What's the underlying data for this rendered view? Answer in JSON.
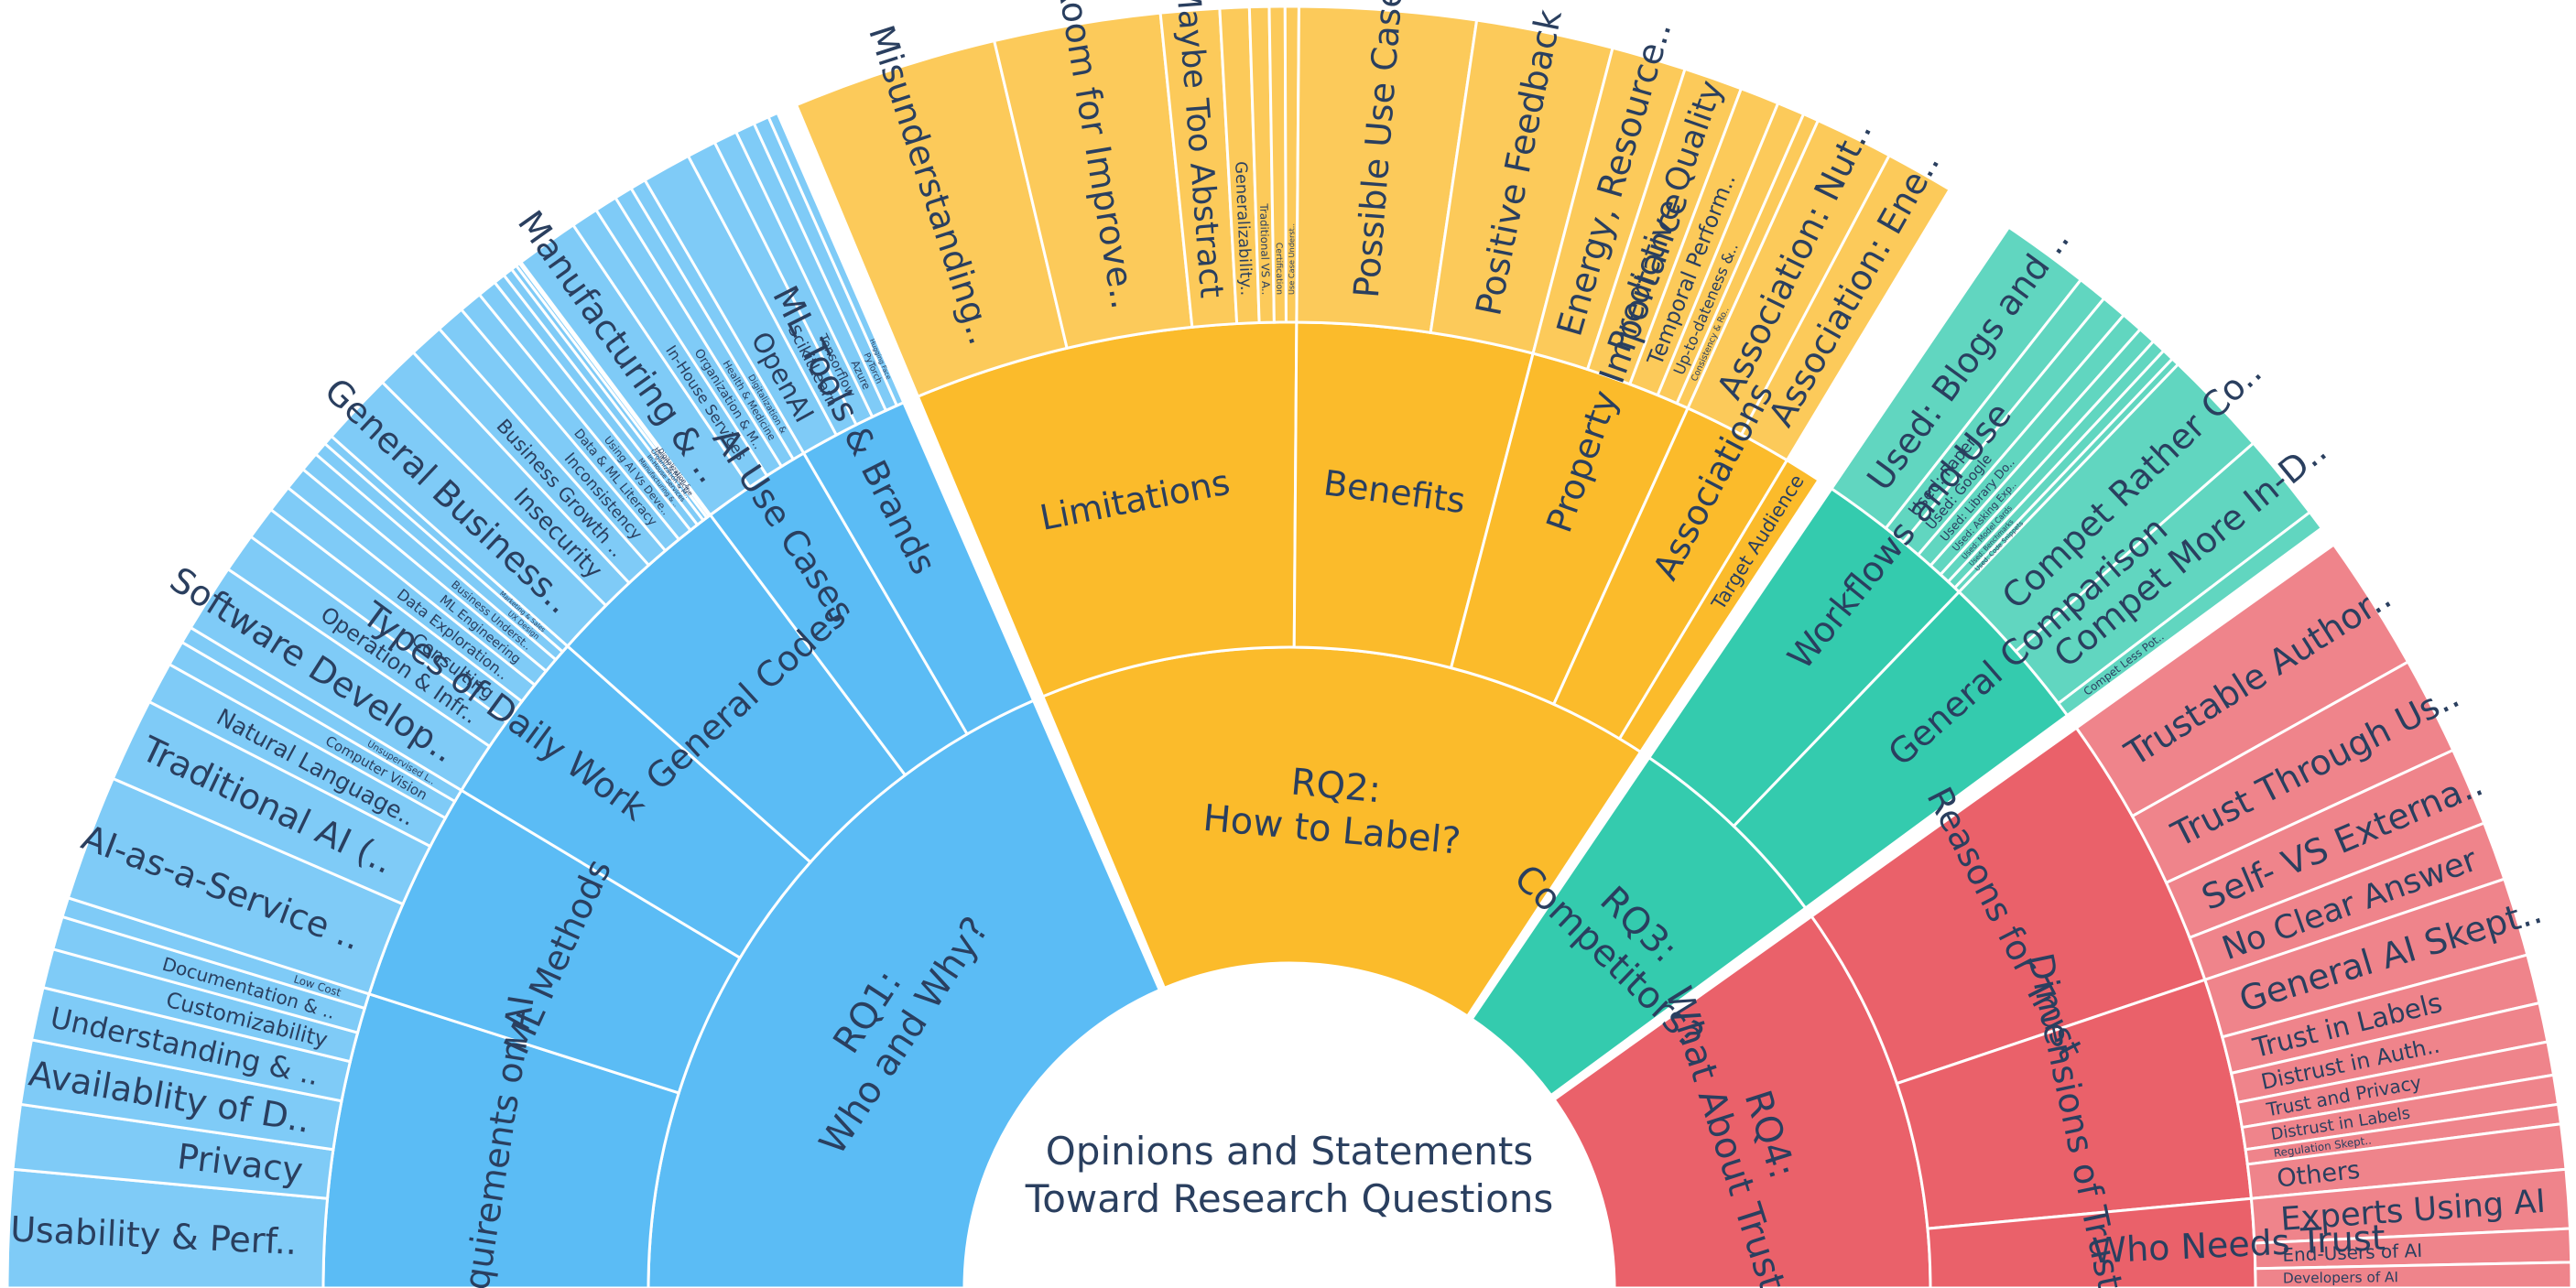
{
  "chart_data": {
    "type": "sunburst",
    "title": "Opinions and Statements Toward Research Questions",
    "title_lines": [
      "Opinions and Statements",
      "Toward Research Questions"
    ],
    "colors": {
      "rq1": "#5bbcf5",
      "rq2": "#fbbb2b",
      "rq3": "#34cbae",
      "rq4": "#ea616a",
      "background": "#ffffff",
      "text": "#2a3f5f"
    },
    "nodes": [
      {
        "label": "RQ1:\nWho and Why?",
        "color": "rq1",
        "value": 7.5,
        "children": [
          {
            "label": "Requirements on AI",
            "value": 2.0,
            "children": [
              {
                "label": "Usability & Perf..",
                "value": 0.6
              },
              {
                "label": "Privacy",
                "value": 0.33
              },
              {
                "label": "Availablity of D..",
                "value": 0.33
              },
              {
                "label": "Understanding & ..",
                "value": 0.27
              },
              {
                "label": "Customizability",
                "value": 0.2
              },
              {
                "label": "Documentation & ..",
                "value": 0.17
              },
              {
                "label": "Low Cost",
                "value": 0.1
              }
            ]
          },
          {
            "label": "ML Methods",
            "value": 1.5,
            "children": [
              {
                "label": "AI-as-a-Service ..",
                "value": 0.6
              },
              {
                "label": "Traditional AI (..",
                "value": 0.4
              },
              {
                "label": "Natural Language..",
                "value": 0.2
              },
              {
                "label": "Computer Vision",
                "value": 0.12
              },
              {
                "label": "Unsupervised L..",
                "value": 0.08
              }
            ]
          },
          {
            "label": "Types of Daily Work",
            "value": 1.2,
            "children": [
              {
                "label": "Software Develop..",
                "value": 0.35
              },
              {
                "label": "Operation & Infr..",
                "value": 0.2
              },
              {
                "label": "Consulting",
                "value": 0.17
              },
              {
                "label": "Data Exploration..",
                "value": 0.14
              },
              {
                "label": "ML Engineering",
                "value": 0.12
              },
              {
                "label": "Business Underst..",
                "value": 0.1
              },
              {
                "label": "UX Design",
                "value": 0.07
              },
              {
                "label": "Marketing & Sales",
                "value": 0.05
              }
            ]
          },
          {
            "label": "General Codes",
            "value": 1.3,
            "children": [
              {
                "label": "General Business..",
                "value": 0.38
              },
              {
                "label": "Insecurity",
                "value": 0.22
              },
              {
                "label": "Business Growth ..",
                "value": 0.18
              },
              {
                "label": "Inconsistency",
                "value": 0.15
              },
              {
                "label": "Data & ML Literacy",
                "value": 0.12
              },
              {
                "label": "Using AI Vs Deve..",
                "value": 0.1
              },
              {
                "label": "Manufacturing & ..",
                "value": 0.06
              },
              {
                "label": "In-House Services",
                "value": 0.05
              },
              {
                "label": "Organization & M..",
                "value": 0.03
              },
              {
                "label": "Health & Medicine",
                "value": 0.02
              },
              {
                "label": "Digitalization & ..",
                "value": 0.01
              }
            ]
          },
          {
            "label": "AI Use Cases",
            "value": 0.75,
            "children": [
              {
                "label": "Manufacturing & ..",
                "value": 0.28
              },
              {
                "label": "In-House Services",
                "value": 0.12
              },
              {
                "label": "Organization & M..",
                "value": 0.1
              },
              {
                "label": "Health & Medicine",
                "value": 0.08
              },
              {
                "label": "Digitalization &",
                "value": 0.07
              }
            ]
          },
          {
            "label": "ML Tools & Brands",
            "value": 0.75,
            "children": [
              {
                "label": "OpenAI",
                "value": 0.25
              },
              {
                "label": "ScikitLearn",
                "value": 0.15
              },
              {
                "label": "Tensorflow",
                "value": 0.12
              },
              {
                "label": "Azure",
                "value": 0.1
              },
              {
                "label": "PyTorch",
                "value": 0.08
              },
              {
                "label": "Hugging Face",
                "value": 0.05
              }
            ]
          }
        ]
      },
      {
        "label": "RQ2:\nHow to Label?",
        "color": "rq2",
        "value": 6.3,
        "children": [
          {
            "label": "Limitations",
            "value": 2.6,
            "children": [
              {
                "label": "Misunderstanding..",
                "value": 1.05
              },
              {
                "label": "Room for Improve..",
                "value": 0.85
              },
              {
                "label": "Maybe Too Abstract",
                "value": 0.3
              },
              {
                "label": "Generalizability..",
                "value": 0.15
              },
              {
                "label": "Traditional VS A..",
                "value": 0.1
              },
              {
                "label": "Certification",
                "value": 0.08
              },
              {
                "label": "Use Case Underst..",
                "value": 0.07
              }
            ]
          },
          {
            "label": "Benefits",
            "value": 1.6,
            "children": [
              {
                "label": "Possible Use Cases",
                "value": 0.9
              },
              {
                "label": "Positive Feedback",
                "value": 0.7
              }
            ]
          },
          {
            "label": "Property Importance",
            "value": 1.1,
            "children": [
              {
                "label": "Energy, Resource..",
                "value": 0.38
              },
              {
                "label": "Predictive Quality",
                "value": 0.3
              },
              {
                "label": "Temporal Perform..",
                "value": 0.2
              },
              {
                "label": "Up-to-dateness &..",
                "value": 0.14
              },
              {
                "label": "Consistency & Ro..",
                "value": 0.08
              }
            ]
          },
          {
            "label": "Associations",
            "value": 0.75,
            "children": [
              {
                "label": "Association: Nut..",
                "value": 0.4
              },
              {
                "label": "Association: Ene..",
                "value": 0.35
              }
            ]
          },
          {
            "label": "Target Audience",
            "value": 0.25,
            "children": []
          }
        ]
      },
      {
        "label": "RQ3:\nCompetitors?",
        "color": "rq3",
        "value": 2.2,
        "children": [
          {
            "label": "Workflows and Use",
            "value": 1.1,
            "children": [
              {
                "label": "Used: Blogs and ..",
                "value": 0.45
              },
              {
                "label": "Used: Paper",
                "value": 0.15
              },
              {
                "label": "Used: Google",
                "value": 0.13
              },
              {
                "label": "Used: Library Do..",
                "value": 0.11
              },
              {
                "label": "Used: Asking Exp..",
                "value": 0.09
              },
              {
                "label": "Used: Model Cards",
                "value": 0.07
              },
              {
                "label": "Used: Benchmarks",
                "value": 0.06
              },
              {
                "label": "Used: Code Snippets",
                "value": 0.04
              }
            ]
          },
          {
            "label": "General Comparison",
            "value": 1.1,
            "children": [
              {
                "label": "Compet Rather Co..",
                "value": 0.55
              },
              {
                "label": "Compet More In-D..",
                "value": 0.45
              },
              {
                "label": "Compet Less Pot..",
                "value": 0.1
              }
            ]
          }
        ]
      },
      {
        "label": "RQ4:\nWhat About Trust?",
        "color": "rq4",
        "value": 4.0,
        "children": [
          {
            "label": "Reasons for Trust",
            "value": 1.9,
            "children": [
              {
                "label": "Trustable Author..",
                "value": 0.7
              },
              {
                "label": "Trust Through Us..",
                "value": 0.5
              },
              {
                "label": "Self- VS Externa..",
                "value": 0.4
              },
              {
                "label": "No Clear Answer",
                "value": 0.3
              }
            ]
          },
          {
            "label": "Dimensions of Trust",
            "value": 1.5,
            "children": [
              {
                "label": "General AI Skept..",
                "value": 0.4
              },
              {
                "label": "Trust in Labels",
                "value": 0.25
              },
              {
                "label": "Distrust in Auth..",
                "value": 0.2
              },
              {
                "label": "Trust and Privacy",
                "value": 0.17
              },
              {
                "label": "Distrust in Labels",
                "value": 0.15
              },
              {
                "label": "Regulation Skept..",
                "value": 0.1
              },
              {
                "label": "Others",
                "value": 0.23
              }
            ]
          },
          {
            "label": "Who Needs Trust",
            "value": 0.6,
            "children": [
              {
                "label": "Experts Using AI",
                "value": 0.3
              },
              {
                "label": "End-Users of AI",
                "value": 0.17
              },
              {
                "label": "Developers of AI",
                "value": 0.13
              }
            ]
          }
        ]
      }
    ]
  }
}
